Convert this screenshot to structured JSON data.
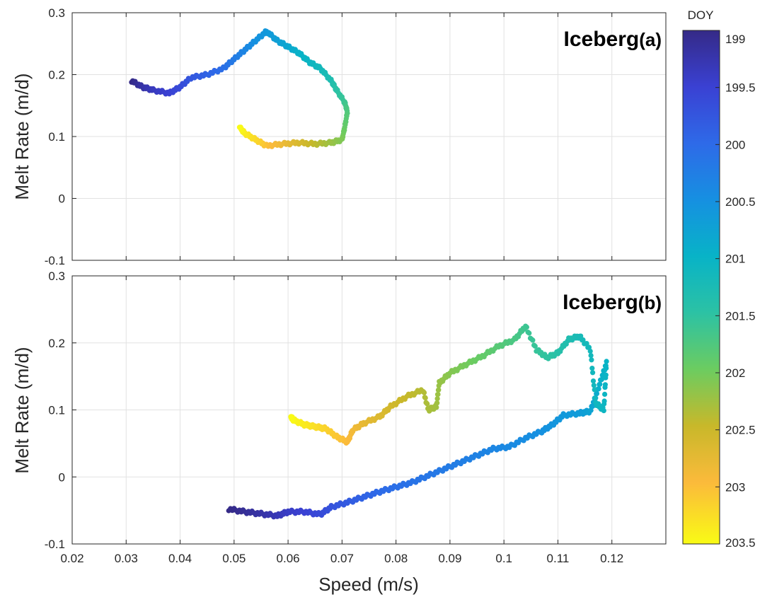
{
  "chart_data": [
    {
      "type": "scatter",
      "panel": "a",
      "title": "Iceberg",
      "title_suffix": "(a)",
      "xlabel": "",
      "ylabel": "Melt Rate (m/d)",
      "xlim": [
        0.02,
        0.13
      ],
      "ylim": [
        -0.1,
        0.3
      ],
      "yticks": [
        "0.3",
        "0.2",
        "0.1",
        "0",
        "-0.1"
      ],
      "grid": true,
      "color_by": "DOY",
      "path": [
        [
          0.031,
          0.19,
          199.0
        ],
        [
          0.033,
          0.18,
          199.2
        ],
        [
          0.035,
          0.175,
          199.35
        ],
        [
          0.038,
          0.17,
          199.5
        ],
        [
          0.04,
          0.18,
          199.6
        ],
        [
          0.042,
          0.195,
          199.75
        ],
        [
          0.045,
          0.2,
          199.9
        ],
        [
          0.048,
          0.21,
          200.05
        ],
        [
          0.05,
          0.225,
          200.2
        ],
        [
          0.052,
          0.24,
          200.35
        ],
        [
          0.054,
          0.255,
          200.5
        ],
        [
          0.056,
          0.27,
          200.6
        ],
        [
          0.058,
          0.255,
          200.7
        ],
        [
          0.06,
          0.245,
          200.8
        ],
        [
          0.062,
          0.235,
          200.95
        ],
        [
          0.064,
          0.22,
          201.05
        ],
        [
          0.066,
          0.21,
          201.15
        ],
        [
          0.068,
          0.19,
          201.3
        ],
        [
          0.069,
          0.175,
          201.45
        ],
        [
          0.0705,
          0.155,
          201.6
        ],
        [
          0.071,
          0.14,
          201.75
        ],
        [
          0.0705,
          0.115,
          201.9
        ],
        [
          0.07,
          0.095,
          202.05
        ],
        [
          0.068,
          0.09,
          202.2
        ],
        [
          0.065,
          0.088,
          202.4
        ],
        [
          0.062,
          0.09,
          202.6
        ],
        [
          0.059,
          0.088,
          202.8
        ],
        [
          0.056,
          0.085,
          203.0
        ],
        [
          0.054,
          0.095,
          203.2
        ],
        [
          0.052,
          0.105,
          203.35
        ],
        [
          0.051,
          0.115,
          203.5
        ]
      ]
    },
    {
      "type": "scatter",
      "panel": "b",
      "title": "Iceberg",
      "title_suffix": "(b)",
      "xlabel": "Speed (m/s)",
      "ylabel": "Melt Rate (m/d)",
      "xlim": [
        0.02,
        0.13
      ],
      "ylim": [
        -0.1,
        0.3
      ],
      "yticks": [
        "0.3",
        "0.2",
        "0.1",
        "0",
        "-0.1"
      ],
      "xticks": [
        "0.02",
        "0.03",
        "0.04",
        "0.05",
        "0.06",
        "0.07",
        "0.08",
        "0.09",
        "0.1",
        "0.11",
        "0.12"
      ],
      "grid": true,
      "color_by": "DOY",
      "path": [
        [
          0.049,
          -0.048,
          199.0
        ],
        [
          0.052,
          -0.052,
          199.1
        ],
        [
          0.055,
          -0.055,
          199.2
        ],
        [
          0.058,
          -0.058,
          199.3
        ],
        [
          0.06,
          -0.052,
          199.4
        ],
        [
          0.063,
          -0.052,
          199.5
        ],
        [
          0.066,
          -0.056,
          199.6
        ],
        [
          0.068,
          -0.045,
          199.7
        ],
        [
          0.071,
          -0.038,
          199.8
        ],
        [
          0.074,
          -0.03,
          199.9
        ],
        [
          0.077,
          -0.022,
          200.0
        ],
        [
          0.08,
          -0.015,
          200.05
        ],
        [
          0.083,
          -0.008,
          200.1
        ],
        [
          0.086,
          0.002,
          200.15
        ],
        [
          0.089,
          0.012,
          200.2
        ],
        [
          0.092,
          0.022,
          200.25
        ],
        [
          0.095,
          0.032,
          200.3
        ],
        [
          0.098,
          0.042,
          200.35
        ],
        [
          0.101,
          0.045,
          200.4
        ],
        [
          0.104,
          0.058,
          200.45
        ],
        [
          0.107,
          0.068,
          200.5
        ],
        [
          0.109,
          0.078,
          200.55
        ],
        [
          0.111,
          0.092,
          200.6
        ],
        [
          0.114,
          0.095,
          200.65
        ],
        [
          0.116,
          0.098,
          200.75
        ],
        [
          0.117,
          0.12,
          200.85
        ],
        [
          0.118,
          0.145,
          200.95
        ],
        [
          0.119,
          0.17,
          201.0
        ],
        [
          0.1185,
          0.1,
          201.05
        ],
        [
          0.117,
          0.11,
          201.1
        ],
        [
          0.116,
          0.19,
          201.15
        ],
        [
          0.114,
          0.21,
          201.2
        ],
        [
          0.112,
          0.205,
          201.3
        ],
        [
          0.11,
          0.185,
          201.4
        ],
        [
          0.108,
          0.178,
          201.5
        ],
        [
          0.106,
          0.19,
          201.55
        ],
        [
          0.104,
          0.225,
          201.6
        ],
        [
          0.102,
          0.205,
          201.7
        ],
        [
          0.099,
          0.195,
          201.8
        ],
        [
          0.096,
          0.18,
          201.9
        ],
        [
          0.093,
          0.168,
          202.0
        ],
        [
          0.09,
          0.155,
          202.1
        ],
        [
          0.088,
          0.14,
          202.2
        ],
        [
          0.0875,
          0.105,
          202.25
        ],
        [
          0.086,
          0.1,
          202.3
        ],
        [
          0.085,
          0.13,
          202.35
        ],
        [
          0.082,
          0.12,
          202.45
        ],
        [
          0.079,
          0.105,
          202.55
        ],
        [
          0.077,
          0.09,
          202.65
        ],
        [
          0.074,
          0.08,
          202.75
        ],
        [
          0.072,
          0.07,
          202.85
        ],
        [
          0.071,
          0.052,
          202.95
        ],
        [
          0.069,
          0.06,
          203.05
        ],
        [
          0.067,
          0.072,
          203.15
        ],
        [
          0.065,
          0.075,
          203.25
        ],
        [
          0.063,
          0.078,
          203.35
        ],
        [
          0.061,
          0.085,
          203.45
        ],
        [
          0.0605,
          0.09,
          203.5
        ]
      ]
    }
  ],
  "colorbar": {
    "title": "DOY",
    "min": 199.0,
    "max": 203.5,
    "ticks": [
      "199",
      "199.5",
      "200",
      "200.5",
      "201",
      "201.5",
      "202",
      "202.5",
      "203",
      "203.5"
    ],
    "colormap": "parula"
  }
}
